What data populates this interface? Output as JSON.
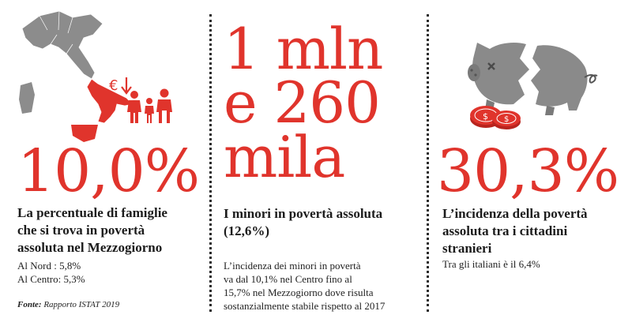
{
  "columns": [
    {
      "big_number": "10,0%",
      "headline_lines": [
        "La percentuale di famiglie",
        "che si trova in povertà",
        "assoluta nel Mezzogiorno"
      ],
      "details": [
        "Al Nord : 5,8%",
        "Al Centro: 5,3%"
      ],
      "source_label": "Fonte:",
      "source_text": "Rapporto ISTAT 2019"
    },
    {
      "big_lines": [
        "1 mln",
        "e 260",
        "mila"
      ],
      "headline_lines": [
        "I minori in povertà assoluta",
        "(12,6%)"
      ],
      "details": [
        "L’incidenza dei minori in povertà",
        "va dal 10,1% nel Centro fino al",
        "15,7% nel Mezzogiorno dove risulta",
        "sostanzialmente stabile rispetto al 2017"
      ]
    },
    {
      "big_number": "30,3%",
      "headline_lines": [
        "L’incidenza della povertà",
        "assoluta tra i cittadini",
        "stranieri"
      ],
      "details": [
        "Tra gli italiani è il 6,4%"
      ]
    }
  ],
  "icons": {
    "col1": [
      "italy-map-icon",
      "euro-down-icon",
      "family-icon"
    ],
    "col3": [
      "broken-piggy-bank-icon",
      "coins-icon"
    ]
  },
  "colors": {
    "accent": "#e0342c",
    "map_gray": "#8c8c8c",
    "text": "#1c1c1c"
  }
}
